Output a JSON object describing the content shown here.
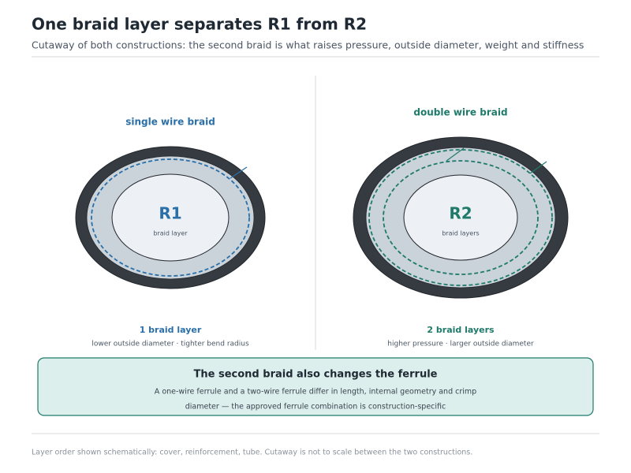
{
  "header": {
    "title": "One braid layer separates R1 from R2",
    "subtitle": "Cutaway of both constructions: the second braid is what raises pressure, outside diameter, weight and stiffness"
  },
  "panels": [
    {
      "heading": "single wire braid",
      "label": "R1",
      "sublabel": "braid layer",
      "caption_title": "1 braid layer",
      "caption": "lower outside diameter · tighter bend radius"
    },
    {
      "heading": "double wire braid",
      "label": "R2",
      "sublabel": "braid layers",
      "caption_title": "2 braid layers",
      "caption": "higher pressure · larger outside diameter"
    }
  ],
  "callout": {
    "title": "The second braid also changes the ferrule",
    "lines": [
      "A one-wire ferrule and a two-wire ferrule differ in length, internal geometry and crimp",
      "diameter — the approved ferrule combination is construction-specific"
    ]
  },
  "footnote": "Layer order shown schematically: cover, reinforcement, tube. Cutaway is not to scale between the two constructions."
}
